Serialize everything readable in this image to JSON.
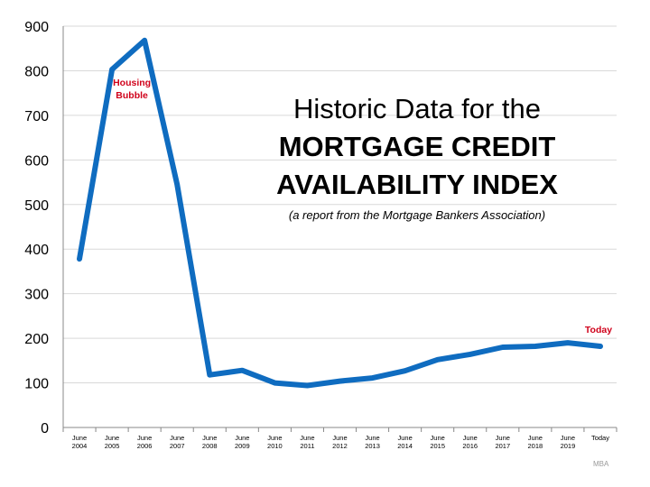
{
  "title": {
    "line1": "Historic Data for the",
    "line2": "MORTGAGE CREDIT",
    "line3": "AVAILABILITY INDEX",
    "subtitle": "(a report from the Mortgage Bankers Association)"
  },
  "source": "MBA",
  "colors": {
    "line": "#0f6cc0",
    "annotation": "#d0021b",
    "grid": "#d9d9d9",
    "axis": "#888888"
  },
  "chart_data": {
    "type": "line",
    "categories": [
      [
        "June",
        "2004"
      ],
      [
        "June",
        "2005"
      ],
      [
        "June",
        "2006"
      ],
      [
        "June",
        "2007"
      ],
      [
        "June",
        "2008"
      ],
      [
        "June",
        "2009"
      ],
      [
        "June",
        "2010"
      ],
      [
        "June",
        "2011"
      ],
      [
        "June",
        "2012"
      ],
      [
        "June",
        "2013"
      ],
      [
        "June",
        "2014"
      ],
      [
        "June",
        "2015"
      ],
      [
        "June",
        "2016"
      ],
      [
        "June",
        "2017"
      ],
      [
        "June",
        "2018"
      ],
      [
        "June",
        "2019"
      ],
      [
        "Today",
        ""
      ]
    ],
    "values": [
      378,
      803,
      868,
      545,
      118,
      128,
      100,
      94,
      104,
      111,
      127,
      152,
      164,
      180,
      182,
      190,
      182
    ],
    "ylim": [
      0,
      900
    ],
    "yticks": [
      "0",
      "100",
      "200",
      "300",
      "400",
      "500",
      "600",
      "700",
      "800",
      "900"
    ],
    "grid": true,
    "annotations": [
      {
        "text": [
          "Housing",
          "Bubble"
        ],
        "category_index": 1
      },
      {
        "text": [
          "Today"
        ],
        "category_index": 16
      }
    ]
  }
}
